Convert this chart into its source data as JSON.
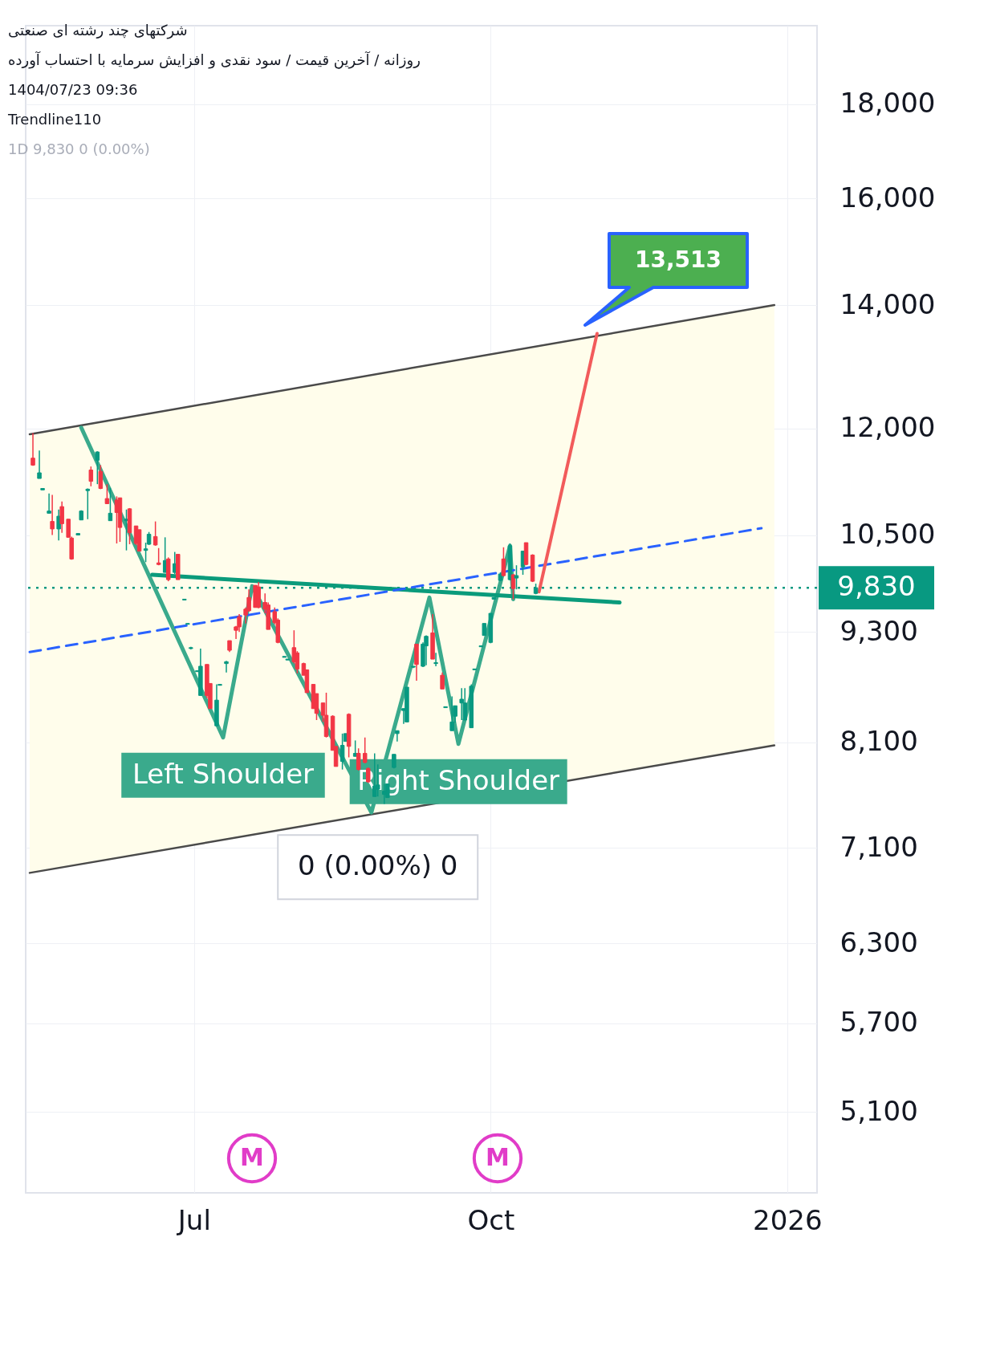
{
  "chart_data": {
    "type": "candlestick",
    "title": "شرکتهای چند رشته ای صنعتی",
    "subtitle": "روزانه / آخرین قیمت / سود نقدی و افزایش سرمایه با احتساب آورده",
    "x": [
      "2025-05-12",
      "2025-05-14",
      "2025-05-15",
      "2025-05-17",
      "2025-05-18",
      "2025-05-20",
      "2025-05-21",
      "2025-05-23",
      "2025-05-24",
      "2025-05-26",
      "2025-05-27",
      "2025-05-29",
      "2025-05-30",
      "2025-06-01",
      "2025-06-02",
      "2025-06-04",
      "2025-06-05",
      "2025-06-07",
      "2025-06-08",
      "2025-06-10",
      "2025-06-11",
      "2025-06-13",
      "2025-06-14",
      "2025-06-16",
      "2025-06-17",
      "2025-06-19",
      "2025-06-20",
      "2025-06-22",
      "2025-06-23",
      "2025-06-25",
      "2025-06-26",
      "2025-06-28",
      "2025-06-29",
      "2025-06-30",
      "2025-07-02",
      "2025-07-03",
      "2025-07-05",
      "2025-07-06",
      "2025-07-08",
      "2025-07-09",
      "2025-07-11",
      "2025-07-12",
      "2025-07-14",
      "2025-07-15",
      "2025-07-17",
      "2025-07-18",
      "2025-07-20",
      "2025-07-21",
      "2025-07-23",
      "2025-07-24",
      "2025-07-26",
      "2025-07-27",
      "2025-07-29",
      "2025-07-30",
      "2025-08-01",
      "2025-08-02",
      "2025-08-04",
      "2025-08-05",
      "2025-08-07",
      "2025-08-08",
      "2025-08-10",
      "2025-08-11",
      "2025-08-13",
      "2025-08-14",
      "2025-08-16",
      "2025-08-17",
      "2025-08-18",
      "2025-08-20",
      "2025-08-21",
      "2025-08-23",
      "2025-08-24",
      "2025-08-26",
      "2025-08-27",
      "2025-08-29",
      "2025-08-30",
      "2025-09-01",
      "2025-09-02",
      "2025-09-04",
      "2025-09-05",
      "2025-09-07",
      "2025-09-08",
      "2025-09-10",
      "2025-09-11",
      "2025-09-13",
      "2025-09-14",
      "2025-09-16",
      "2025-09-17",
      "2025-09-19",
      "2025-09-20",
      "2025-09-22",
      "2025-09-23",
      "2025-09-25",
      "2025-09-26",
      "2025-09-28",
      "2025-09-29",
      "2025-10-01",
      "2025-10-02",
      "2025-10-04",
      "2025-10-05",
      "2025-10-07",
      "2025-10-08",
      "2025-10-09",
      "2025-10-11",
      "2025-10-12",
      "2025-10-14",
      "2025-10-15"
    ],
    "ohlc": [
      [
        11560,
        11930,
        11450,
        11460
      ],
      [
        11270,
        11670,
        11270,
        11350
      ],
      [
        11110,
        11130,
        11110,
        11130
      ],
      [
        10790,
        11060,
        10790,
        10820
      ],
      [
        10680,
        11040,
        10500,
        10580
      ],
      [
        10580,
        10840,
        10430,
        10750
      ],
      [
        10880,
        10950,
        10530,
        10650
      ],
      [
        10710,
        10710,
        10470,
        10470
      ],
      [
        10460,
        10480,
        10180,
        10190
      ],
      [
        10500,
        10520,
        10500,
        10520
      ],
      [
        10700,
        10830,
        10700,
        10820
      ],
      [
        11100,
        11130,
        10710,
        11120
      ],
      [
        11390,
        11440,
        11160,
        11230
      ],
      [
        11530,
        11660,
        11190,
        11650
      ],
      [
        11370,
        11460,
        11120,
        11130
      ],
      [
        10990,
        11190,
        10920,
        10920
      ],
      [
        10690,
        11140,
        10690,
        10790
      ],
      [
        10970,
        11020,
        10390,
        10800
      ],
      [
        11000,
        11000,
        10410,
        10600
      ],
      [
        10690,
        10840,
        10300,
        10710
      ],
      [
        10850,
        10860,
        10380,
        10530
      ],
      [
        10620,
        10620,
        10370,
        10390
      ],
      [
        10570,
        10570,
        10290,
        10290
      ],
      [
        10300,
        10400,
        10150,
        10320
      ],
      [
        10380,
        10540,
        10370,
        10510
      ],
      [
        10480,
        10680,
        10360,
        10370
      ],
      [
        10140,
        10330,
        10110,
        10120
      ],
      [
        10020,
        10470,
        10020,
        10170
      ],
      [
        10190,
        10210,
        9910,
        9930
      ],
      [
        10020,
        10280,
        10000,
        10130
      ],
      [
        10250,
        10250,
        9930,
        9930
      ],
      [
        9680,
        9690,
        9680,
        9690
      ],
      [
        9390,
        9400,
        9390,
        9400
      ],
      [
        9110,
        9130,
        9100,
        9120
      ],
      [
        8850,
        8860,
        8850,
        8860
      ],
      [
        8590,
        9110,
        8590,
        8910
      ],
      [
        8930,
        8930,
        8560,
        8590
      ],
      [
        8720,
        8720,
        8450,
        8450
      ],
      [
        8270,
        8710,
        8270,
        8540
      ],
      [
        8700,
        8710,
        8700,
        8710
      ],
      [
        8940,
        8970,
        8840,
        8960
      ],
      [
        9200,
        9200,
        9070,
        9090
      ],
      [
        9360,
        9370,
        9220,
        9320
      ],
      [
        9480,
        9510,
        9300,
        9360
      ],
      [
        9570,
        9590,
        9400,
        9500
      ],
      [
        9710,
        9810,
        9540,
        9550
      ],
      [
        9860,
        9860,
        9590,
        9590
      ],
      [
        9840,
        9900,
        9580,
        9590
      ],
      [
        9650,
        9760,
        9520,
        9570
      ],
      [
        9620,
        9650,
        9330,
        9330
      ],
      [
        9540,
        9590,
        9390,
        9410
      ],
      [
        9440,
        9460,
        9170,
        9180
      ],
      [
        9010,
        9020,
        9010,
        9020
      ],
      [
        8980,
        8990,
        8980,
        8990
      ],
      [
        9120,
        9320,
        8940,
        8960
      ],
      [
        9060,
        9080,
        8830,
        8880
      ],
      [
        8940,
        8950,
        8810,
        8810
      ],
      [
        8870,
        8870,
        8620,
        8620
      ],
      [
        8710,
        8710,
        8450,
        8450
      ],
      [
        8610,
        8610,
        8330,
        8400
      ],
      [
        8510,
        8510,
        8310,
        8380
      ],
      [
        8380,
        8620,
        8150,
        8160
      ],
      [
        8370,
        8380,
        8020,
        8020
      ],
      [
        8060,
        8060,
        7860,
        7860
      ],
      [
        7910,
        8190,
        7830,
        8070
      ],
      [
        8110,
        8190,
        8110,
        8190
      ],
      [
        8390,
        8400,
        7950,
        8060
      ],
      [
        7960,
        8120,
        7960,
        7990
      ],
      [
        7990,
        8040,
        7820,
        7830
      ],
      [
        7990,
        8150,
        7890,
        7900
      ],
      [
        7840,
        7850,
        7700,
        7710
      ],
      [
        7570,
        7990,
        7570,
        7670
      ],
      [
        7640,
        7880,
        7570,
        7680
      ],
      [
        7590,
        7690,
        7500,
        7620
      ],
      [
        7560,
        7690,
        7560,
        7690
      ],
      [
        7850,
        7980,
        7840,
        7980
      ],
      [
        8190,
        8220,
        8110,
        8220
      ],
      [
        8430,
        8450,
        8290,
        8450
      ],
      [
        8310,
        8680,
        8310,
        8680
      ],
      [
        8900,
        8910,
        8890,
        8910
      ],
      [
        9160,
        9160,
        8750,
        8930
      ],
      [
        8910,
        9180,
        8900,
        9160
      ],
      [
        9140,
        9260,
        8920,
        9250
      ],
      [
        9290,
        9510,
        8990,
        8990
      ],
      [
        8940,
        9060,
        8910,
        8950
      ],
      [
        8810,
        8840,
        8660,
        8660
      ],
      [
        8460,
        8470,
        8460,
        8470
      ],
      [
        8220,
        8580,
        8220,
        8310
      ],
      [
        8370,
        8480,
        8300,
        8480
      ],
      [
        8510,
        8670,
        8330,
        8550
      ],
      [
        8330,
        8670,
        8330,
        8510
      ],
      [
        8250,
        8710,
        8250,
        8690
      ],
      [
        8870,
        8880,
        8870,
        8880
      ],
      [
        9130,
        9140,
        9130,
        9140
      ],
      [
        9260,
        9400,
        9260,
        9400
      ],
      [
        9180,
        9520,
        9170,
        9520
      ],
      [
        9690,
        9710,
        9690,
        9710
      ],
      [
        9920,
        10020,
        9910,
        10000
      ],
      [
        10190,
        10340,
        9970,
        9980
      ],
      [
        9930,
        10390,
        9920,
        10360
      ],
      [
        9990,
        10000,
        9690,
        9820
      ],
      [
        9950,
        10110,
        9810,
        9980
      ],
      [
        10090,
        10290,
        9990,
        10290
      ],
      [
        10400,
        10400,
        10110,
        10120
      ],
      [
        10240,
        10250,
        9900,
        9910
      ],
      [
        9760,
        9880,
        9750,
        9830
      ]
    ],
    "colors": [
      "#f23645",
      "#089981",
      "#089981",
      "#089981",
      "#f23645",
      "#089981",
      "#f23645",
      "#f23645",
      "#f23645",
      "#089981",
      "#089981",
      "#089981",
      "#f23645",
      "#089981",
      "#f23645",
      "#f23645",
      "#089981",
      "#f23645",
      "#f23645",
      "#089981",
      "#f23645",
      "#f23645",
      "#f23645",
      "#089981",
      "#089981",
      "#f23645",
      "#f23645",
      "#089981",
      "#f23645",
      "#089981",
      "#f23645",
      "#089981",
      "#089981",
      "#089981",
      "#089981",
      "#089981",
      "#f23645",
      "#f23645",
      "#089981",
      "#089981",
      "#089981",
      "#f23645",
      "#f23645",
      "#f23645",
      "#f23645",
      "#f23645",
      "#f23645",
      "#f23645",
      "#f23645",
      "#f23645",
      "#f23645",
      "#f23645",
      "#089981",
      "#089981",
      "#f23645",
      "#f23645",
      "#f23645",
      "#f23645",
      "#f23645",
      "#f23645",
      "#f23645",
      "#f23645",
      "#f23645",
      "#f23645",
      "#089981",
      "#089981",
      "#f23645",
      "#089981",
      "#f23645",
      "#f23645",
      "#f23645",
      "#089981",
      "#089981",
      "#089981",
      "#089981",
      "#089981",
      "#089981",
      "#089981",
      "#089981",
      "#089981",
      "#f23645",
      "#089981",
      "#089981",
      "#f23645",
      "#089981",
      "#f23645",
      "#089981",
      "#089981",
      "#089981",
      "#089981",
      "#089981",
      "#089981",
      "#089981",
      "#089981",
      "#089981",
      "#089981",
      "#089981",
      "#089981",
      "#f23645",
      "#089981",
      "#f23645",
      "#089981",
      "#089981",
      "#f23645",
      "#f23645",
      "#089981"
    ],
    "xlim": [
      "2025-05-11",
      "2026-01-09"
    ],
    "xticks": [
      {
        "value": "2025-07-01",
        "label": "Jul"
      },
      {
        "value": "2025-10-01",
        "label": "Oct"
      },
      {
        "value": "2026-01-01",
        "label": "2026"
      }
    ],
    "ylim": [
      4610,
      19860
    ],
    "yticks": [
      {
        "value": 5100,
        "label": "5,100"
      },
      {
        "value": 5700,
        "label": "5,700"
      },
      {
        "value": 6300,
        "label": "6,300"
      },
      {
        "value": 7100,
        "label": "7,100"
      },
      {
        "value": 8100,
        "label": "8,100"
      },
      {
        "value": 9300,
        "label": "9,300"
      },
      {
        "value": 10500,
        "label": "10,500"
      },
      {
        "value": 12000,
        "label": "12,000"
      },
      {
        "value": 14000,
        "label": "14,000"
      },
      {
        "value": 16000,
        "label": "16,000"
      },
      {
        "value": 18000,
        "label": "18,000"
      }
    ],
    "log": "y",
    "grid": true,
    "marker": "none",
    "series": [
      {
        "type": "line",
        "color": "#4a4a4a",
        "x": [
          "2025-05-11",
          "2025-12-28"
        ],
        "values": [
          11910,
          14000
        ],
        "lower": [
          6880,
          8070
        ],
        "upper": [
          11910,
          14000
        ]
      },
      {
        "type": "line",
        "color": "#4a4a4a",
        "x": [
          "2025-05-11",
          "2025-12-28"
        ],
        "values": [
          6880,
          8070
        ]
      },
      {
        "type": "line",
        "color": "#3aaa8c",
        "x": [
          "2025-05-27",
          "2025-07-10",
          "2025-07-19",
          "2025-08-25",
          "2025-09-12",
          "2025-09-21",
          "2025-10-07",
          "2025-10-08"
        ],
        "values": [
          12010,
          8150,
          9850,
          7420,
          9710,
          8085,
          10360,
          9690
        ]
      },
      {
        "type": "line",
        "color": "#0a9b7b",
        "x": [
          "2025-06-18",
          "2025-11-10"
        ],
        "values": [
          9990,
          9650
        ]
      },
      {
        "type": "line",
        "color": "#2962ff",
        "line_style": "dashed",
        "x": [
          "2025-05-11",
          "2025-12-24"
        ],
        "values": [
          9070,
          10590
        ]
      },
      {
        "type": "line",
        "color": "#f25b5b",
        "x": [
          "2025-10-16",
          "2025-11-03"
        ],
        "values": [
          9780,
          13510
        ]
      }
    ],
    "ref_lines": [
      {
        "axis": "y",
        "value": 9830,
        "label": "9,830",
        "color": "#089981",
        "line_style": "dotted"
      }
    ],
    "annotations": [
      "1404/07/23 09:36",
      "Trendline110",
      "1D  9,830  0 (0.00%)",
      "13,513",
      "M",
      "M",
      {
        "text": "Left Shoulder",
        "x": "2025-07-10",
        "y": 8150
      },
      {
        "text": "Right Shoulder",
        "x": "2025-09-21",
        "y": 8085
      },
      {
        "text": "0 (0.00%) 0",
        "x": "2025-08-25",
        "y": 7420
      }
    ]
  }
}
